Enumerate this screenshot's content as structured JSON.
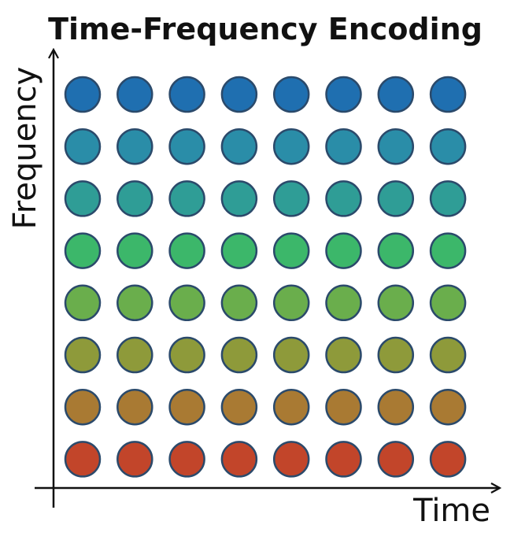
{
  "header": {
    "title": "Time-Frequency Encoding"
  },
  "axes": {
    "x_label": "Time",
    "y_label": "Frequency"
  }
}
